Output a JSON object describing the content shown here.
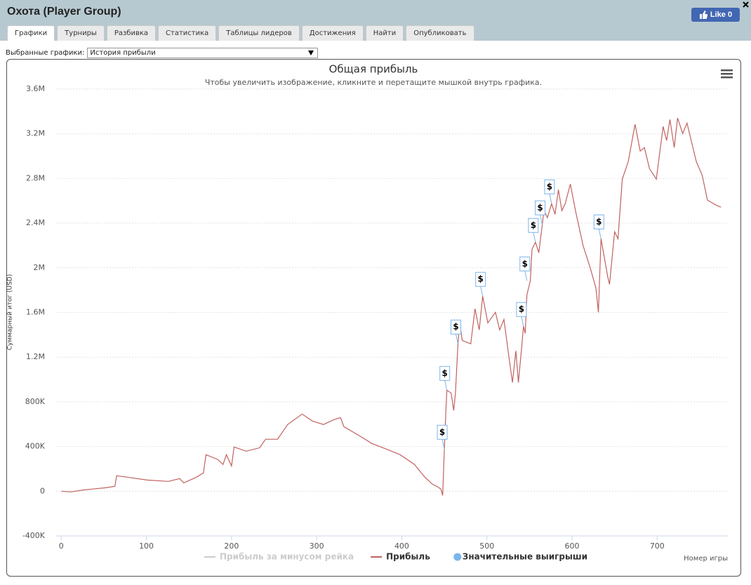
{
  "header": {
    "title": "Охота (Player Group)",
    "like": "Like 0"
  },
  "tabs": [
    "Графики",
    "Турниры",
    "Разбивка",
    "Статистика",
    "Таблицы лидеров",
    "Достижения",
    "Найти",
    "Опубликовать"
  ],
  "selector": {
    "label": "Выбранные графики:",
    "value": "История прибыли"
  },
  "chart_data": {
    "type": "line",
    "title": "Общая прибыль",
    "subtitle": "Чтобы увеличить изображение, кликните и перетащите мышкой внутрь графика.",
    "y_label": "Суммарный итог (USD)",
    "x_label": "Номер игры",
    "xlim": [
      -6,
      783
    ],
    "xticks": [
      0,
      100,
      200,
      300,
      400,
      500,
      600,
      700
    ],
    "ylim": [
      -400000,
      3600000
    ],
    "yticks": [
      {
        "value": -400000,
        "label": "-400K"
      },
      0,
      {
        "value": 400000,
        "label": "400K"
      },
      {
        "value": 800000,
        "label": "800K"
      },
      {
        "value": 1200000,
        "label": "1.2M"
      },
      {
        "value": 1600000,
        "label": "1.6M"
      },
      {
        "value": 2000000,
        "label": "2M"
      },
      {
        "value": 2400000,
        "label": "2.4M"
      },
      {
        "value": 2800000,
        "label": "2.8M"
      },
      {
        "value": 3200000,
        "label": "3.2M"
      },
      {
        "value": 3600000,
        "label": "3.6M"
      }
    ],
    "grid": true,
    "legend": "bottom",
    "series": [
      {
        "name": "Прибыль за минусом рейка",
        "color": "#cccccc",
        "visible": false
      },
      {
        "name": "Прибыль",
        "color": "#c0625f",
        "visible": true,
        "x": [
          0,
          11,
          27,
          52,
          63,
          65,
          77,
          101,
          126,
          139,
          144,
          159,
          167,
          170,
          184,
          190,
          194,
          200,
          203,
          217,
          233,
          240,
          254,
          266,
          283,
          295,
          308,
          320,
          328,
          332,
          349,
          365,
          382,
          398,
          415,
          427,
          436,
          441,
          446,
          448,
          450,
          452,
          453,
          458,
          461,
          463,
          466,
          468,
          471,
          481,
          486,
          491,
          495,
          501,
          510,
          515,
          520,
          526,
          530,
          534,
          537,
          540,
          543,
          545,
          547,
          551,
          553,
          557,
          561,
          565,
          567,
          571,
          576,
          580,
          584,
          588,
          592,
          598,
          604,
          613,
          621,
          628,
          631,
          634,
          642,
          644,
          650,
          654,
          659,
          666,
          674,
          680,
          685,
          691,
          699,
          707,
          711,
          715,
          720,
          724,
          730,
          735,
          740,
          746,
          753,
          759,
          769,
          775
        ],
        "values": [
          0,
          -6000,
          12000,
          31000,
          44000,
          138000,
          126000,
          100000,
          88000,
          113000,
          75000,
          126000,
          163000,
          327000,
          283000,
          239000,
          327000,
          226000,
          396000,
          358000,
          389000,
          465000,
          465000,
          597000,
          691000,
          628000,
          597000,
          640000,
          659000,
          578000,
          502000,
          427000,
          377000,
          327000,
          239000,
          126000,
          63000,
          44000,
          19000,
          -38000,
          377000,
          753000,
          904000,
          879000,
          722000,
          879000,
          1319000,
          1507000,
          1350000,
          1319000,
          1633000,
          1444000,
          1746000,
          1507000,
          1601000,
          1444000,
          1538000,
          1193000,
          973000,
          1256000,
          973000,
          1224000,
          1476000,
          1413000,
          1758000,
          1884000,
          2166000,
          2229000,
          2135000,
          2386000,
          2512000,
          2449000,
          2574000,
          2480000,
          2700000,
          2512000,
          2574000,
          2750000,
          2512000,
          2198000,
          2009000,
          1821000,
          1601000,
          2260000,
          1915000,
          1852000,
          2323000,
          2260000,
          2794000,
          2951000,
          3284000,
          3045000,
          3077000,
          2888000,
          2794000,
          3265000,
          3139000,
          3328000,
          3077000,
          3341000,
          3202000,
          3296000,
          3139000,
          2951000,
          2826000,
          2606000,
          2562000,
          2543000
        ]
      },
      {
        "name": "Значительные выигрыши",
        "color": "#7cb5ec",
        "visible": true,
        "flag": "$",
        "x": [
          450,
          453,
          466,
          495,
          543,
          547,
          557,
          565,
          576,
          634
        ],
        "values": [
          377000,
          904000,
          1319000,
          1746000,
          1476000,
          1884000,
          2229000,
          2386000,
          2574000,
          2260000
        ]
      }
    ]
  }
}
